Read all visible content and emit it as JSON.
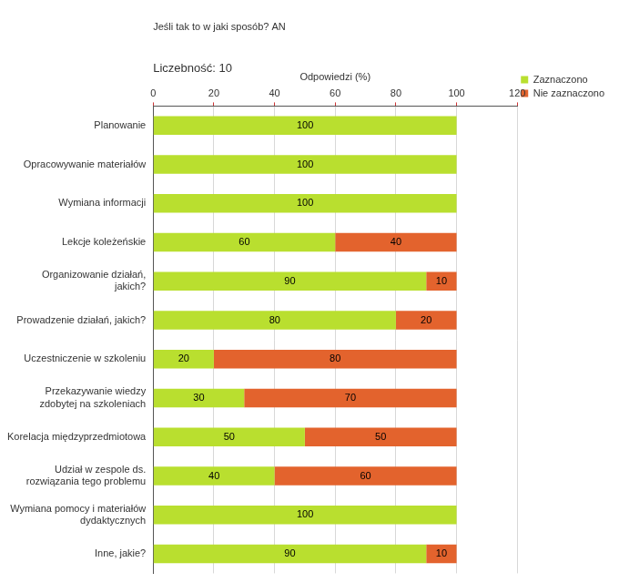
{
  "chart_data": {
    "type": "bar",
    "title": "Jeśli tak to w jaki sposób? AN",
    "subtitle": "Liczebność: 10",
    "x_label": "Odpowiedzi (%)",
    "orientation": "horizontal",
    "stacked": true,
    "data_labels": true,
    "grid": true,
    "legend": "top-right",
    "categories": [
      "Planowanie",
      "Opracowywanie materiałów",
      "Wymiana informacji",
      "Lekcje koleżeńskie",
      "Organizowanie działań, jakich?",
      "Prowadzenie działań, jakich?",
      "Uczestniczenie w szkoleniu",
      "Przekazywanie wiedzy zdobytej na szkoleniach",
      "Korelacja międzyprzedmiotowa",
      "Udział w zespole ds. rozwiązania tego problemu",
      "Wymiana pomocy i materiałów dydaktycznych",
      "Inne, jakie?"
    ],
    "series": [
      {
        "name": "Zaznaczono",
        "color": "#b9df2f",
        "values": [
          100,
          100,
          100,
          60,
          90,
          80,
          20,
          30,
          50,
          40,
          100,
          90
        ]
      },
      {
        "name": "Nie zaznaczono",
        "color": "#e3632d",
        "values": [
          null,
          null,
          null,
          40,
          10,
          20,
          80,
          70,
          50,
          60,
          null,
          10
        ]
      }
    ],
    "xlim": [
      0,
      120
    ],
    "xticks": [
      0,
      20,
      40,
      60,
      80,
      100,
      120
    ]
  }
}
